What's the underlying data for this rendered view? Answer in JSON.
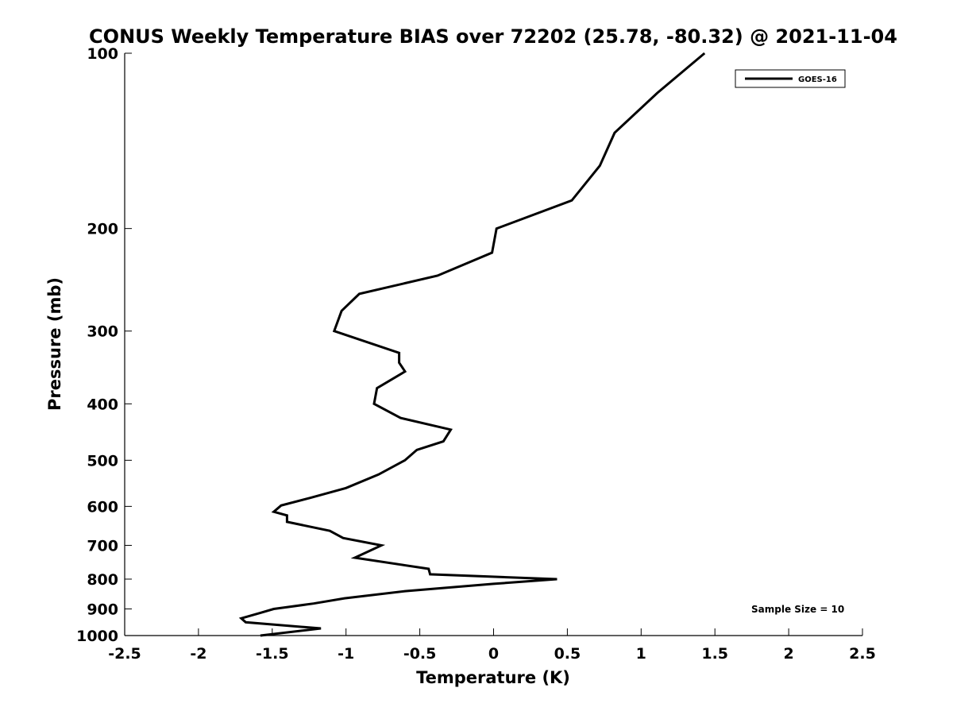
{
  "chart_data": {
    "type": "line",
    "title": "CONUS Weekly Temperature BIAS over 72202 (25.78, -80.32) @ 2021-11-04",
    "xlabel": "Temperature (K)",
    "ylabel": "Pressure (mb)",
    "xlim": [
      -2.5,
      2.5
    ],
    "ylim": [
      1000,
      100
    ],
    "y_scale": "log",
    "y_inverted": true,
    "grid": false,
    "legend": "top-right",
    "x_ticks": [
      "-2.5",
      "-2",
      "-1.5",
      "-1",
      "-0.5",
      "0",
      "0.5",
      "1",
      "1.5",
      "2",
      "2.5"
    ],
    "y_ticks": [
      "100",
      "200",
      "300",
      "400",
      "500",
      "600",
      "700",
      "800",
      "900",
      "1000"
    ],
    "annotation": "Sample Size = 10",
    "series": [
      {
        "name": "GOES-16",
        "color": "#000000",
        "x": [
          1.43,
          1.11,
          0.82,
          0.72,
          0.53,
          0.02,
          -0.01,
          -0.38,
          -0.91,
          -1.03,
          -1.08,
          -0.64,
          -0.64,
          -0.6,
          -0.79,
          -0.81,
          -0.63,
          -0.29,
          -0.34,
          -0.52,
          -0.6,
          -0.78,
          -1.0,
          -1.24,
          -1.44,
          -1.49,
          -1.4,
          -1.4,
          -1.11,
          -1.02,
          -0.76,
          -0.94,
          -0.44,
          -0.43,
          0.43,
          0.0,
          -0.6,
          -1.01,
          -1.22,
          -1.49,
          -1.58,
          -1.71,
          -1.68,
          -1.17,
          -1.58
        ],
        "y": [
          100,
          117,
          137,
          156,
          179,
          200,
          220,
          241,
          259,
          277,
          300,
          327,
          340,
          352,
          376,
          400,
          423,
          443,
          464,
          480,
          500,
          529,
          558,
          580,
          598,
          613,
          622,
          638,
          661,
          680,
          700,
          735,
          768,
          785,
          800,
          815,
          839,
          863,
          881,
          900,
          914,
          934,
          949,
          972,
          1000
        ]
      }
    ]
  }
}
